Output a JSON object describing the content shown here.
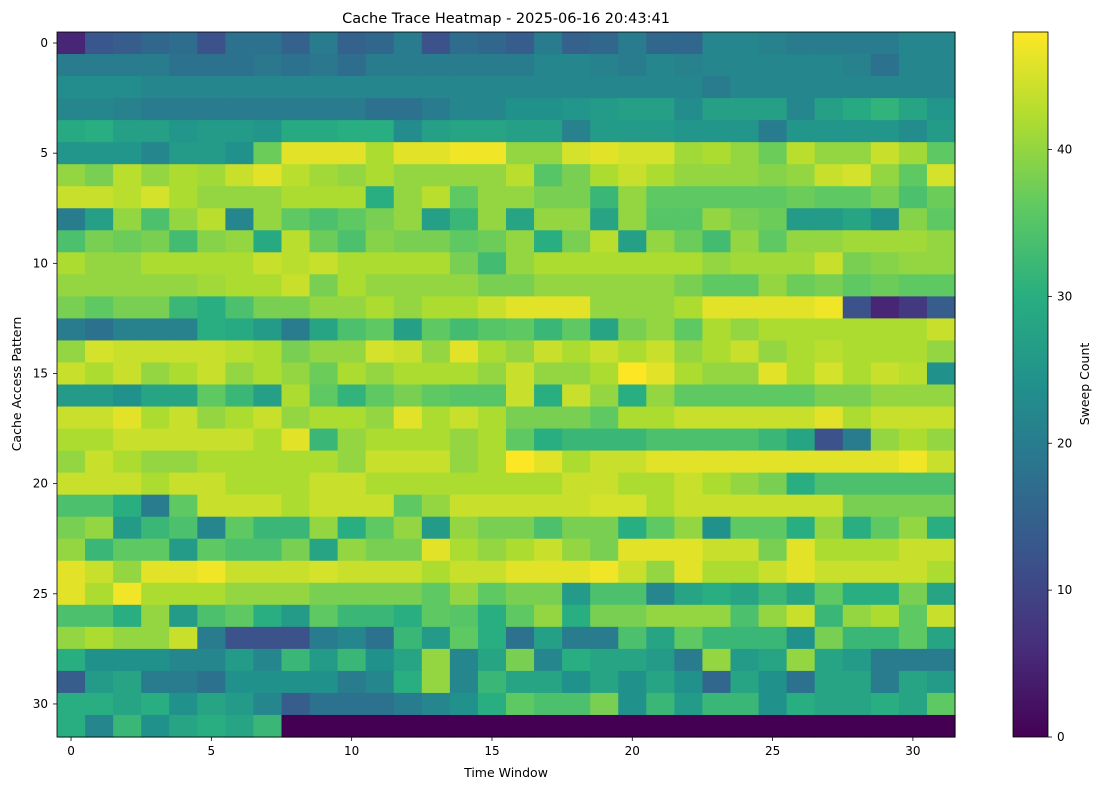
{
  "chart_data": {
    "type": "heatmap",
    "title": "Cache Trace Heatmap - 2025-06-16 20:43:41",
    "xlabel": "Time Window",
    "ylabel": "Cache Access Pattern",
    "colorbar_label": "Sweep Count",
    "colormap": "viridis",
    "vmin": 0,
    "vmax": 48,
    "x_ticks": [
      0,
      5,
      10,
      15,
      20,
      25,
      30
    ],
    "y_ticks": [
      0,
      5,
      10,
      15,
      20,
      25,
      30
    ],
    "colorbar_ticks": [
      0,
      10,
      20,
      30,
      40
    ],
    "n_rows": 32,
    "n_cols": 32,
    "values": [
      [
        5,
        13,
        14,
        16,
        17,
        12,
        18,
        18,
        15,
        20,
        15,
        16,
        20,
        12,
        17,
        16,
        14,
        20,
        15,
        16,
        20,
        16,
        16,
        22,
        22,
        21,
        20,
        20,
        20,
        20,
        22,
        22
      ],
      [
        20,
        20,
        20,
        20,
        18,
        18,
        18,
        19,
        18,
        19,
        17,
        20,
        20,
        20,
        20,
        20,
        20,
        22,
        22,
        21,
        20,
        22,
        21,
        22,
        22,
        22,
        22,
        22,
        21,
        18,
        22,
        22
      ],
      [
        23,
        23,
        23,
        22,
        22,
        22,
        22,
        22,
        22,
        22,
        22,
        22,
        22,
        22,
        22,
        22,
        22,
        22,
        22,
        22,
        22,
        22,
        22,
        20,
        22,
        22,
        22,
        22,
        22,
        22,
        22,
        22
      ],
      [
        22,
        22,
        21,
        20,
        20,
        20,
        20,
        20,
        20,
        20,
        20,
        18,
        18,
        20,
        22,
        22,
        24,
        24,
        25,
        26,
        27,
        27,
        23,
        27,
        27,
        27,
        22,
        27,
        29,
        31,
        28,
        25
      ],
      [
        29,
        30,
        27,
        27,
        25,
        26,
        26,
        25,
        29,
        29,
        30,
        30,
        23,
        27,
        28,
        28,
        27,
        27,
        21,
        26,
        26,
        26,
        25,
        25,
        25,
        20,
        25,
        25,
        25,
        25,
        23,
        26
      ],
      [
        25,
        25,
        25,
        22,
        26,
        26,
        24,
        37,
        46,
        46,
        46,
        42,
        46,
        46,
        47,
        47,
        40,
        40,
        45,
        46,
        45,
        45,
        41,
        42,
        40,
        37,
        43,
        40,
        40,
        44,
        41,
        36
      ],
      [
        40,
        38,
        43,
        40,
        42,
        41,
        44,
        46,
        43,
        41,
        40,
        42,
        40,
        40,
        40,
        40,
        43,
        35,
        38,
        42,
        44,
        42,
        40,
        40,
        40,
        39,
        40,
        44,
        45,
        40,
        36,
        45
      ],
      [
        44,
        44,
        43,
        45,
        42,
        40,
        40,
        40,
        42,
        42,
        42,
        30,
        40,
        43,
        36,
        40,
        40,
        38,
        38,
        32,
        40,
        36,
        36,
        36,
        36,
        36,
        37,
        36,
        36,
        38,
        34,
        37
      ],
      [
        20,
        27,
        40,
        34,
        40,
        43,
        22,
        40,
        36,
        34,
        36,
        38,
        40,
        27,
        32,
        40,
        28,
        40,
        40,
        28,
        40,
        35,
        35,
        40,
        38,
        37,
        26,
        26,
        28,
        24,
        39,
        36
      ],
      [
        34,
        38,
        37,
        38,
        33,
        39,
        40,
        29,
        43,
        37,
        34,
        39,
        38,
        38,
        36,
        37,
        40,
        30,
        38,
        43,
        27,
        40,
        37,
        33,
        40,
        36,
        40,
        40,
        41,
        41,
        41,
        40
      ],
      [
        42,
        40,
        40,
        42,
        42,
        42,
        42,
        44,
        43,
        44,
        42,
        42,
        42,
        42,
        38,
        33,
        40,
        42,
        42,
        42,
        42,
        42,
        42,
        40,
        41,
        41,
        41,
        44,
        38,
        39,
        40,
        40
      ],
      [
        40,
        40,
        40,
        40,
        40,
        41,
        42,
        42,
        44,
        38,
        42,
        40,
        40,
        40,
        40,
        38,
        38,
        40,
        40,
        40,
        40,
        40,
        38,
        36,
        36,
        40,
        37,
        38,
        36,
        37,
        36,
        36
      ],
      [
        38,
        36,
        38,
        38,
        32,
        30,
        34,
        38,
        38,
        40,
        40,
        42,
        40,
        42,
        42,
        44,
        46,
        46,
        46,
        40,
        40,
        40,
        42,
        46,
        46,
        46,
        46,
        47,
        12,
        5,
        8,
        14
      ],
      [
        20,
        18,
        21,
        21,
        21,
        30,
        29,
        26,
        20,
        28,
        34,
        36,
        27,
        36,
        33,
        35,
        36,
        32,
        36,
        28,
        38,
        40,
        36,
        42,
        40,
        42,
        42,
        42,
        42,
        42,
        42,
        44
      ],
      [
        40,
        45,
        44,
        44,
        44,
        44,
        43,
        42,
        38,
        40,
        40,
        45,
        44,
        40,
        46,
        42,
        40,
        44,
        42,
        44,
        42,
        44,
        40,
        42,
        44,
        40,
        42,
        43,
        42,
        42,
        42,
        40
      ],
      [
        44,
        42,
        44,
        40,
        42,
        44,
        40,
        42,
        40,
        37,
        42,
        40,
        42,
        42,
        42,
        40,
        44,
        40,
        40,
        42,
        48,
        46,
        42,
        40,
        40,
        46,
        42,
        45,
        42,
        44,
        43,
        24
      ],
      [
        26,
        26,
        24,
        28,
        28,
        36,
        32,
        27,
        42,
        36,
        31,
        36,
        38,
        36,
        35,
        35,
        44,
        30,
        44,
        40,
        30,
        40,
        36,
        36,
        36,
        36,
        36,
        38,
        38,
        40,
        40,
        40
      ],
      [
        44,
        44,
        46,
        42,
        44,
        40,
        42,
        44,
        40,
        42,
        42,
        40,
        46,
        42,
        44,
        42,
        38,
        38,
        38,
        36,
        42,
        42,
        44,
        44,
        44,
        44,
        44,
        46,
        42,
        44,
        44,
        44
      ],
      [
        42,
        42,
        44,
        44,
        44,
        44,
        44,
        42,
        46,
        32,
        40,
        42,
        42,
        42,
        40,
        42,
        36,
        30,
        32,
        32,
        32,
        34,
        34,
        34,
        34,
        32,
        28,
        12,
        20,
        40,
        42,
        40
      ],
      [
        40,
        44,
        42,
        40,
        40,
        42,
        42,
        42,
        42,
        42,
        40,
        44,
        44,
        44,
        40,
        42,
        48,
        46,
        42,
        44,
        44,
        46,
        46,
        46,
        46,
        46,
        46,
        46,
        46,
        46,
        47,
        44
      ],
      [
        44,
        44,
        44,
        42,
        44,
        44,
        42,
        42,
        42,
        44,
        44,
        42,
        42,
        42,
        42,
        42,
        42,
        42,
        44,
        44,
        42,
        42,
        44,
        42,
        40,
        38,
        30,
        34,
        34,
        34,
        34,
        34
      ],
      [
        34,
        34,
        30,
        20,
        36,
        44,
        44,
        44,
        42,
        44,
        44,
        44,
        36,
        40,
        44,
        44,
        44,
        44,
        44,
        45,
        45,
        42,
        44,
        44,
        44,
        44,
        44,
        44,
        38,
        38,
        38,
        38
      ],
      [
        38,
        40,
        26,
        32,
        34,
        22,
        36,
        32,
        32,
        40,
        30,
        36,
        40,
        26,
        40,
        38,
        38,
        34,
        38,
        38,
        30,
        36,
        40,
        24,
        36,
        36,
        30,
        40,
        30,
        36,
        40,
        30
      ],
      [
        40,
        32,
        36,
        36,
        26,
        36,
        34,
        34,
        38,
        28,
        40,
        38,
        38,
        46,
        42,
        40,
        42,
        44,
        40,
        38,
        46,
        46,
        46,
        44,
        44,
        38,
        46,
        42,
        42,
        42,
        44,
        44
      ],
      [
        46,
        44,
        40,
        46,
        46,
        47,
        44,
        44,
        44,
        45,
        44,
        44,
        44,
        42,
        44,
        44,
        46,
        46,
        46,
        47,
        44,
        40,
        46,
        42,
        42,
        44,
        46,
        44,
        44,
        44,
        44,
        42
      ],
      [
        46,
        42,
        47,
        42,
        42,
        42,
        40,
        40,
        40,
        38,
        38,
        38,
        38,
        36,
        40,
        36,
        38,
        38,
        26,
        34,
        34,
        22,
        28,
        30,
        28,
        32,
        28,
        36,
        30,
        30,
        38,
        28
      ],
      [
        34,
        34,
        30,
        40,
        26,
        34,
        36,
        30,
        26,
        36,
        32,
        32,
        30,
        36,
        35,
        30,
        36,
        40,
        30,
        38,
        38,
        40,
        40,
        40,
        34,
        40,
        44,
        32,
        40,
        42,
        36,
        44
      ],
      [
        40,
        42,
        40,
        40,
        44,
        20,
        12,
        12,
        12,
        20,
        22,
        18,
        32,
        26,
        36,
        30,
        18,
        27,
        20,
        20,
        34,
        28,
        36,
        32,
        32,
        32,
        24,
        38,
        32,
        32,
        36,
        28
      ],
      [
        30,
        24,
        24,
        24,
        22,
        22,
        26,
        22,
        32,
        26,
        32,
        24,
        28,
        40,
        22,
        28,
        38,
        22,
        30,
        28,
        28,
        26,
        20,
        40,
        26,
        28,
        40,
        28,
        26,
        20,
        20,
        20
      ],
      [
        14,
        26,
        28,
        20,
        20,
        18,
        24,
        24,
        24,
        24,
        20,
        22,
        30,
        40,
        22,
        32,
        28,
        28,
        24,
        28,
        24,
        28,
        24,
        16,
        28,
        24,
        18,
        28,
        28,
        20,
        28,
        26
      ],
      [
        30,
        30,
        28,
        30,
        24,
        28,
        26,
        22,
        14,
        18,
        18,
        18,
        20,
        22,
        24,
        30,
        36,
        34,
        34,
        38,
        24,
        32,
        26,
        32,
        32,
        24,
        30,
        28,
        28,
        30,
        28,
        36
      ],
      [
        30,
        22,
        32,
        24,
        28,
        30,
        28,
        32,
        0,
        0,
        0,
        0,
        0,
        0,
        0,
        0,
        0,
        0,
        0,
        0,
        0,
        0,
        0,
        0,
        0,
        0,
        0,
        0,
        0,
        0,
        0,
        0
      ]
    ]
  }
}
